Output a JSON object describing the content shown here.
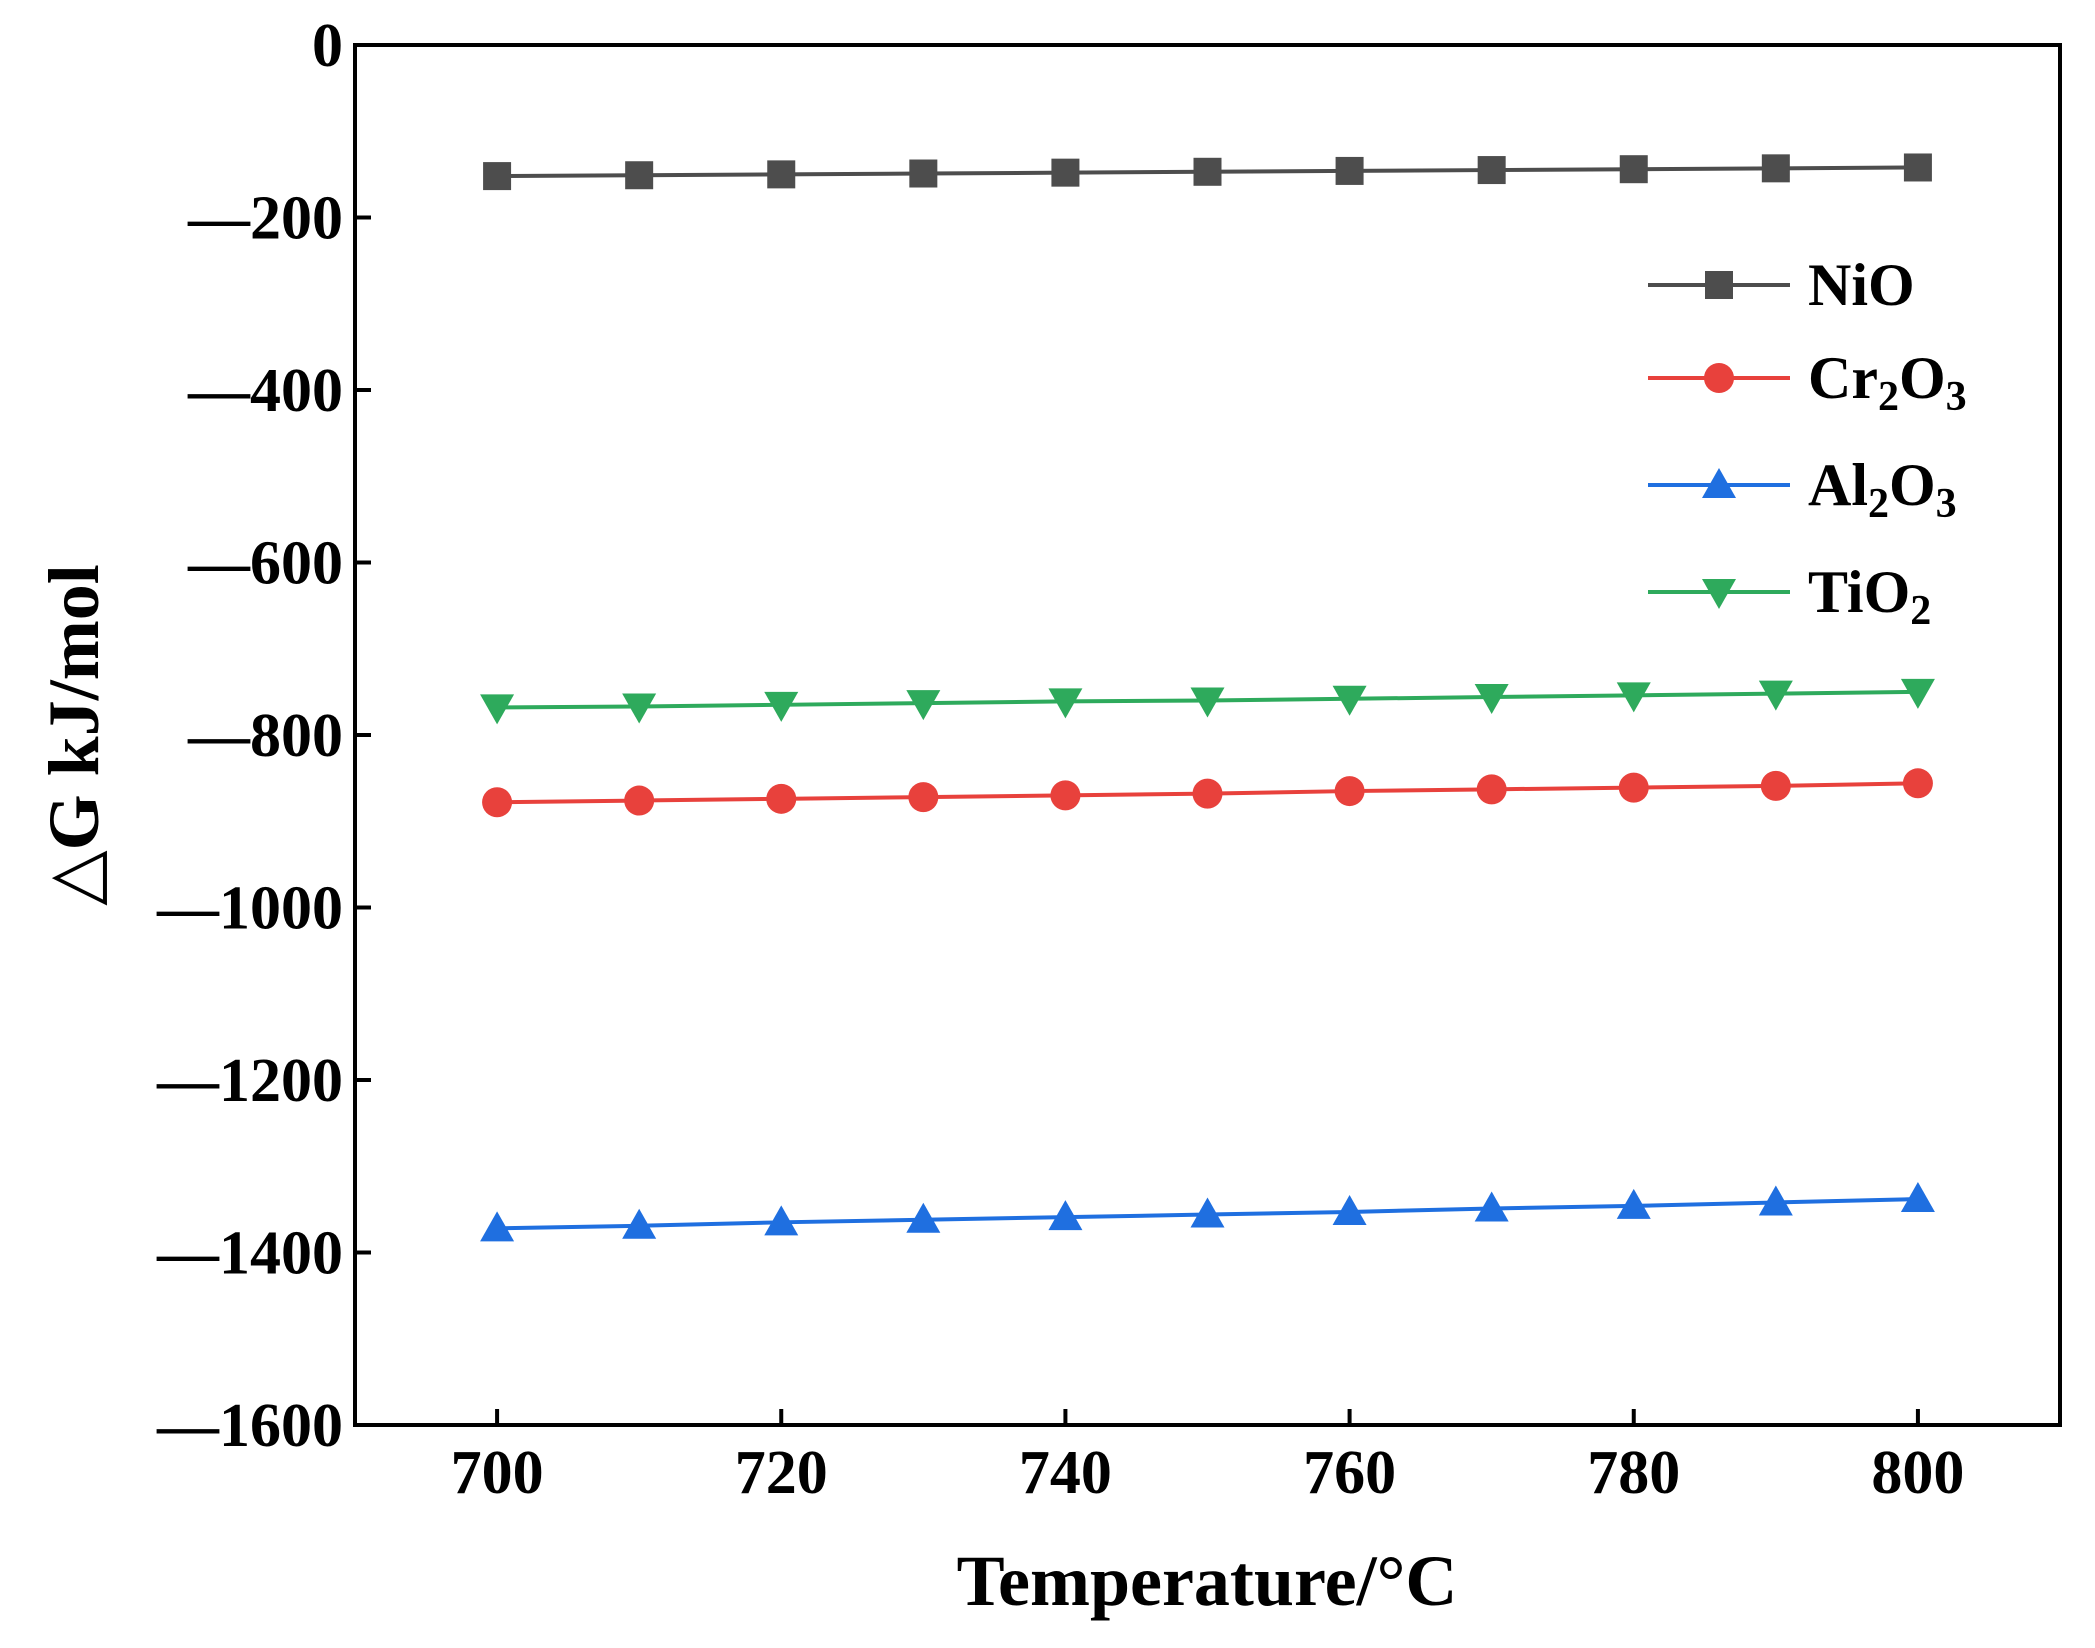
{
  "chart_data": {
    "type": "line",
    "title": "",
    "xlabel": "Temperature/°C",
    "ylabel": "△G kJ/mol",
    "xlim": [
      690,
      810
    ],
    "ylim": [
      -1600,
      0
    ],
    "x_ticks": [
      700,
      720,
      740,
      760,
      780,
      800
    ],
    "y_ticks": [
      0,
      -200,
      -400,
      -600,
      -800,
      -1000,
      -1200,
      -1400,
      -1600
    ],
    "x_tick_labels": [
      "700",
      "720",
      "740",
      "760",
      "780",
      "800"
    ],
    "y_tick_labels": [
      "0",
      "—200",
      "—400",
      "—600",
      "—800",
      "—1000",
      "—1200",
      "—1400",
      "—1600"
    ],
    "x": [
      700,
      710,
      720,
      730,
      740,
      750,
      760,
      770,
      780,
      790,
      800
    ],
    "legend_position": "top-right",
    "series": [
      {
        "name": "NiO",
        "label_main": "NiO",
        "label_parts": [
          {
            "t": "NiO",
            "sub": false
          }
        ],
        "marker": "square",
        "color": "#4d4d4d",
        "values": [
          -152,
          -151,
          -150,
          -149,
          -148,
          -147,
          -146,
          -145,
          -144,
          -143,
          -142
        ]
      },
      {
        "name": "Cr2O3",
        "label_parts": [
          {
            "t": "Cr",
            "sub": false
          },
          {
            "t": "2",
            "sub": true
          },
          {
            "t": "O",
            "sub": false
          },
          {
            "t": "3",
            "sub": true
          }
        ],
        "marker": "circle",
        "color": "#e8413c",
        "values": [
          -878,
          -876,
          -874,
          -872,
          -870,
          -868,
          -865,
          -863,
          -861,
          -859,
          -856
        ]
      },
      {
        "name": "Al2O3",
        "label_parts": [
          {
            "t": "Al",
            "sub": false
          },
          {
            "t": "2",
            "sub": true
          },
          {
            "t": "O",
            "sub": false
          },
          {
            "t": "3",
            "sub": true
          }
        ],
        "marker": "triangle-up",
        "color": "#1f6fe0",
        "values": [
          -1372,
          -1369,
          -1365,
          -1362,
          -1359,
          -1356,
          -1353,
          -1349,
          -1346,
          -1342,
          -1338
        ]
      },
      {
        "name": "TiO2",
        "label_parts": [
          {
            "t": "TiO",
            "sub": false
          },
          {
            "t": "2",
            "sub": true
          }
        ],
        "marker": "triangle-down",
        "color": "#2eaa5c",
        "values": [
          -768,
          -767,
          -765,
          -763,
          -761,
          -760,
          -758,
          -756,
          -754,
          -752,
          -750
        ]
      }
    ]
  }
}
